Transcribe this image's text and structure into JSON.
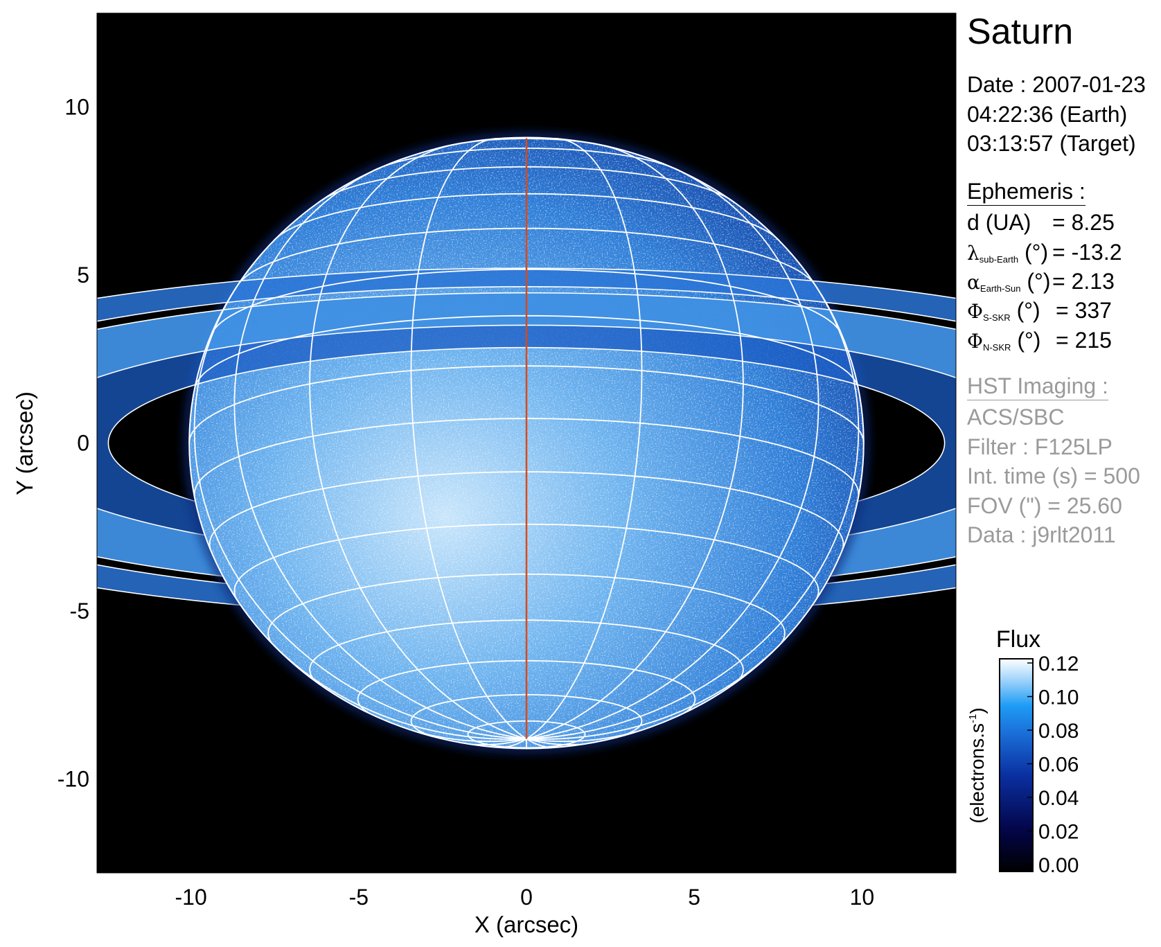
{
  "chart_data": {
    "type": "heatmap",
    "title": "Saturn",
    "xlabel": "X (arcsec)",
    "ylabel": "Y (arcsec)",
    "xlim": [
      -12.8,
      12.8
    ],
    "ylim": [
      -12.8,
      12.8
    ],
    "xticks": [
      -10,
      -5,
      0,
      5,
      10
    ],
    "yticks": [
      -10,
      -5,
      0,
      5,
      10
    ],
    "grid": "planetographic lat/lon overlay",
    "background_color": "#000000",
    "grid_color": "#ffffff",
    "central_meridian_color": "#d84a1b",
    "colorbar": {
      "title": "Flux",
      "label": "(electrons.s-1)",
      "label_main": "(electrons.s",
      "label_sup": "-1",
      "label_end": ")",
      "range": [
        0.0,
        0.12
      ],
      "ticks": [
        "0.12",
        "0.10",
        "0.08",
        "0.06",
        "0.04",
        "0.02",
        "0.00"
      ],
      "colors": [
        "#000000",
        "#03064a",
        "#0a2fa0",
        "#1a6fd8",
        "#1e9cf5",
        "#9fd3fb",
        "#ffffff"
      ]
    }
  },
  "info": {
    "title": "Saturn",
    "date_line": "Date : 2007-01-23",
    "earth_time": "04:22:36 (Earth)",
    "target_time": "03:13:57 (Target)",
    "ephemeris_header": "Ephemeris :",
    "ephemeris": [
      {
        "symbol": "d",
        "sub": "",
        "unit": " (UA)",
        "value": "= 8.25"
      },
      {
        "symbol": "λ",
        "sub": "sub-Earth",
        "unit": " (°)",
        "value": "= -13.2"
      },
      {
        "symbol": "α",
        "sub": "Earth-Sun",
        "unit": " (°)",
        "value": "= 2.13"
      },
      {
        "symbol": "Φ",
        "sub": "S-SKR",
        "unit": " (°)",
        "value": "= 337"
      },
      {
        "symbol": "Φ",
        "sub": "N-SKR",
        "unit": " (°)",
        "value": "= 215"
      }
    ],
    "imaging_header": "HST Imaging :",
    "imaging": [
      "ACS/SBC",
      "Filter : F125LP",
      "Int. time (s) = 500",
      "FOV (\") = 25.60",
      "Data : j9rlt2011"
    ]
  }
}
